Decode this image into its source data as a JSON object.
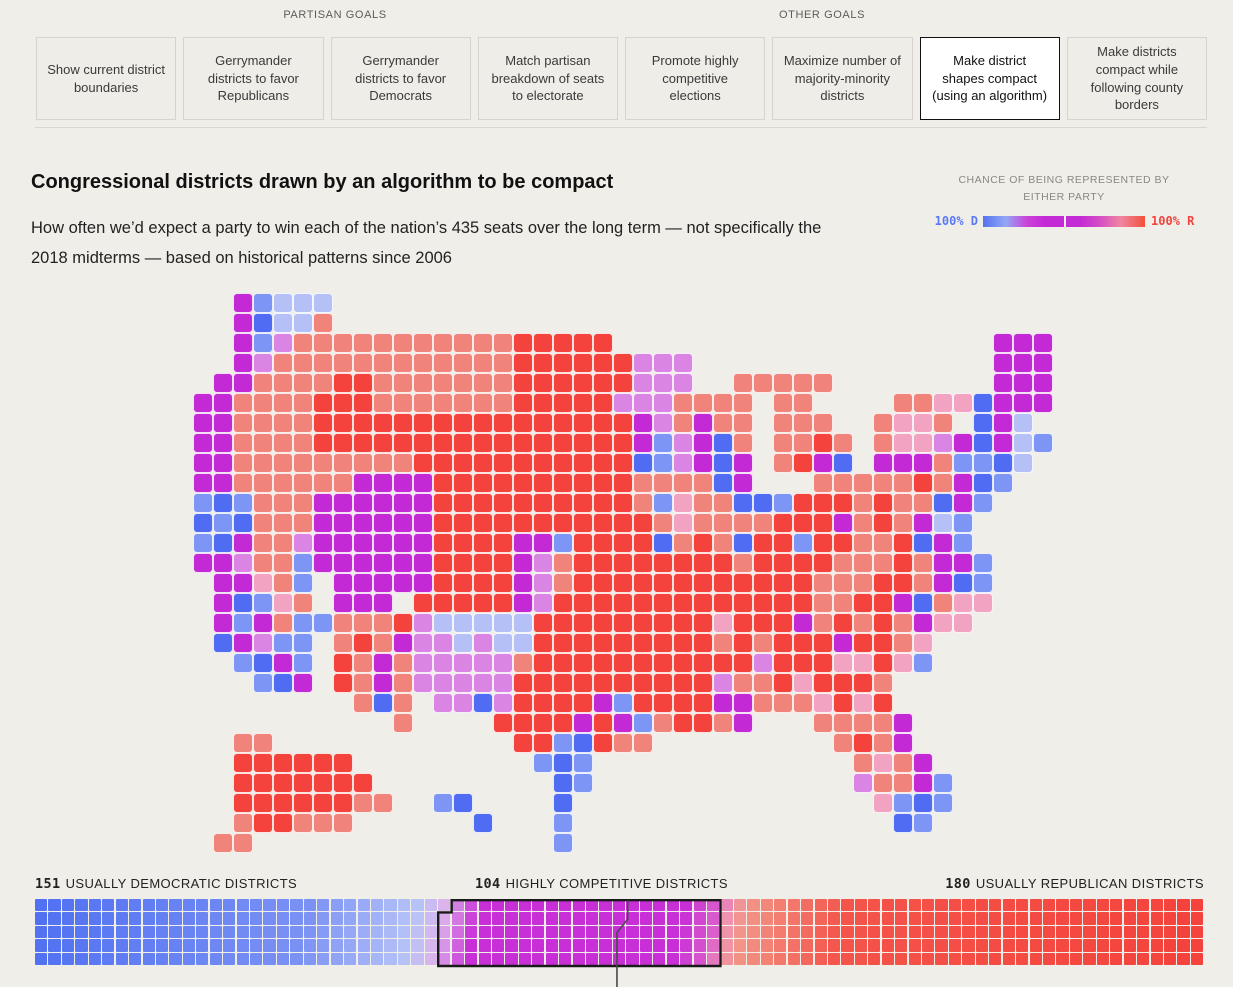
{
  "page": {
    "background": "#f0eee9"
  },
  "toolbar": {
    "groups": [
      {
        "label": "PARTISAN GOALS"
      },
      {
        "label": "OTHER GOALS"
      }
    ],
    "tabs": [
      {
        "label": "Show current district boundaries",
        "selected": false
      },
      {
        "label": "Gerrymander districts to favor Republicans",
        "selected": false
      },
      {
        "label": "Gerrymander districts to favor Democrats",
        "selected": false
      },
      {
        "label": "Match partisan breakdown of seats to electorate",
        "selected": false
      },
      {
        "label": "Promote highly competitive elections",
        "selected": false
      },
      {
        "label": "Maximize number of majority-minority districts",
        "selected": false
      },
      {
        "label": "Make district shapes compact (using an algorithm)",
        "selected": true
      },
      {
        "label": "Make districts compact while following county borders",
        "selected": false
      }
    ]
  },
  "header": {
    "title": "Congressional districts drawn by an algorithm to be compact",
    "subtitle": "How often we’d expect a party to win each of the nation’s 435 seats over the long term — not specifically the 2018 midterms — based on historical patterns since 2006"
  },
  "legend": {
    "title_line1": "CHANCE OF BEING REPRESENTED BY",
    "title_line2": "EITHER PARTY",
    "left_label": "100% D",
    "right_label": "100% R",
    "left_color": "#5b79f7",
    "right_color": "#f4423c",
    "gradient": [
      [
        0,
        "#5573f0"
      ],
      [
        14,
        "#93a7f4"
      ],
      [
        27,
        "#cb43da"
      ],
      [
        38,
        "#c32bd5"
      ],
      [
        60,
        "#c32bd5"
      ],
      [
        72,
        "#d44ec5"
      ],
      [
        85,
        "#ef86a0"
      ],
      [
        100,
        "#f4503c"
      ]
    ]
  },
  "chart_data": {
    "type": "choropleth_cartogram_with_seat_waffle",
    "map": {
      "description": "US congressional districts colored by long-term chance of party representation (blue=Democratic, magenta=toss-up, red=Republican)",
      "palette": {
        "B": "#4f6cf3",
        "b": "#7d95f4",
        "L": "#b5c1f6",
        "M": "#c32ad6",
        "O": "#da85e4",
        "P": "#f2a3c2",
        "r": "#f0837a",
        "R": "#f4423c"
      },
      "palette_meaning": {
        "B": "safe Democratic",
        "b": "likely Democratic",
        "L": "lean Democratic",
        "M": "highly competitive",
        "O": "competitive lean R",
        "P": "lean Republican",
        "r": "likely Republican",
        "R": "safe Republican"
      },
      "grid": [
        [
          "...Mb",
          "LLL..",
          ".....",
          ".....",
          ".....",
          ".....",
          ".....",
          ".....",
          "....."
        ],
        [
          "...MB",
          "LLr..",
          ".....",
          ".....",
          ".....",
          ".....",
          ".....",
          ".....",
          "....."
        ],
        [
          "...Mb",
          "Orrrr",
          "rrrrr",
          "rrRRR",
          "RR...",
          ".....",
          ".....",
          ".....",
          ".MMM."
        ],
        [
          "...MO",
          "rrrrr",
          "rrrrr",
          "rrRRR",
          "RRROO",
          "O....",
          ".....",
          ".....",
          ".MMM."
        ],
        [
          "..MMr",
          "rrrRR",
          "rrrrr",
          "rrRRR",
          "RRROO",
          "O..rr",
          "rrr..",
          ".....",
          ".MMM."
        ],
        [
          ".MMrr",
          "rrRRR",
          "rrrrr",
          "rrRRR",
          "RROOO",
          "rrrr.",
          "rr...",
          ".rrPP",
          "BMMM."
        ],
        [
          ".MMrr",
          "rrRRR",
          "RRRRR",
          "RRRRR",
          "RRRMO",
          "rMrr.",
          "rrr..",
          "rPPr.",
          "BML.."
        ],
        [
          ".MMrr",
          "rrRRR",
          "RRRRR",
          "RRRRR",
          "RRRMb",
          "OMBr.",
          "rrRr.",
          "rPPOM",
          "BMLb."
        ],
        [
          ".MMrr",
          "rrrrr",
          "rrRRR",
          "RRRRR",
          "RRRBb",
          "OMBM.",
          "rRMB.",
          "MMMrb",
          "bBL.."
        ],
        [
          ".MMrr",
          "rrrrM",
          "MMMRR",
          "RRRRR",
          "RRRrr",
          "rrBM.",
          "..rrr",
          "rrRrM",
          "Bb..."
        ],
        [
          ".bBbr",
          "rrMMM",
          "MMMRR",
          "RRRRR",
          "RRRrb",
          "PrrBB",
          "bRRRr",
          "RrrBM",
          "b...."
        ],
        [
          ".BbBr",
          "rrMMM",
          "MMMRR",
          "RRRRR",
          "RRRRr",
          "Prrrr",
          "RRRMr",
          "RrMLb",
          "....."
        ],
        [
          ".bBMr",
          "rOMMM",
          "MMMRR",
          "RRMMb",
          "RRRRB",
          "rRrBR",
          "RbRRr",
          "rRBMb",
          "....."
        ],
        [
          ".MMOr",
          "rbMMM",
          "MMMRR",
          "RRMOr",
          "RRRRR",
          "RRRrR",
          "RRRrr",
          "rRrMM",
          "b...."
        ],
        [
          "..MMP",
          "rb.MM",
          "MMMRR",
          "RRMOr",
          "RRRRR",
          "RRRRR",
          "RRrrr",
          "RRrMB",
          "b...."
        ],
        [
          "..MBb",
          "Pr.MM",
          "M.RRR",
          "RRMOR",
          "RRRRR",
          "RRRRR",
          "RRrrR",
          "RMBrP",
          "P...."
        ],
        [
          "..MbM",
          "rbbrr",
          "rROLL",
          "LLLRR",
          "RRRRR",
          "RRPRR",
          "RMrRr",
          "RrMPP",
          "....."
        ],
        [
          "..BMO",
          "bb.rR",
          "rMOOL",
          "OLLRR",
          "RRRRR",
          "RRrRr",
          "RRRMR",
          "RrP..",
          "....."
        ],
        [
          "...bB",
          "Mb.Rr",
          "MrOOO",
          "OOrRR",
          "RRRRR",
          "RRRRO",
          "RRRPP",
          "RPb..",
          "....."
        ],
        [
          "....b",
          "BM.Rr",
          "MrOOO",
          "OORRR",
          "RRRRR",
          "RROrr",
          "RPRRR",
          "r....",
          "....."
        ],
        [
          ".....",
          "....r",
          "Br.OO",
          "BORRR",
          "RMbRR",
          "RRMMr",
          "rrPRP",
          "R....",
          "....."
        ],
        [
          ".....",
          ".....",
          ".r...",
          ".RRRR",
          "MRMbr",
          "RRrM.",
          "..rrr",
          "rM...",
          "....."
        ],
        [
          "...rr",
          ".....",
          ".....",
          "..RRb",
          "BRrr.",
          ".....",
          "...rR",
          "rM...",
          "....."
        ],
        [
          "...RR",
          "RRRR.",
          ".....",
          "...bB",
          "b....",
          ".....",
          "....r",
          "PrM..",
          "....."
        ],
        [
          "...RR",
          "RRRRR",
          ".....",
          "....B",
          "b....",
          ".....",
          "....O",
          "rrMb.",
          "....."
        ],
        [
          "...RR",
          "RRRRr",
          "r..bB",
          "....B",
          ".....",
          ".....",
          ".....",
          "PbBb.",
          "....."
        ],
        [
          "...rR",
          "Rrrr.",
          ".....",
          "B...b",
          ".....",
          ".....",
          ".....",
          ".Bb..",
          "....."
        ],
        [
          "..rr.",
          ".....",
          ".....",
          "....b",
          ".....",
          ".....",
          ".....",
          ".....",
          "....."
        ]
      ]
    },
    "seat_strip": {
      "type": "waffle",
      "total": 435,
      "rows": 5,
      "fill_order": "column-major",
      "groups": [
        {
          "count": 151,
          "label": "USUALLY DEMOCRATIC DISTRICTS"
        },
        {
          "count": 104,
          "label": "HIGHLY COMPETITIVE DISTRICTS"
        },
        {
          "count": 180,
          "label": "USUALLY REPUBLICAN DISTRICTS"
        }
      ],
      "competitive_outline": true,
      "median_marker": true,
      "color_stops": [
        [
          0,
          "#5171f2"
        ],
        [
          100,
          "#7b92f4"
        ],
        [
          140,
          "#b7c3f7"
        ],
        [
          150,
          "#dcb4ec"
        ],
        [
          163,
          "#c82fd7"
        ],
        [
          240,
          "#c82fd7"
        ],
        [
          252,
          "#da5ecb"
        ],
        [
          256,
          "#ef93b0"
        ],
        [
          263,
          "#f29486"
        ],
        [
          300,
          "#f4544a"
        ],
        [
          434,
          "#f4423c"
        ]
      ]
    }
  }
}
